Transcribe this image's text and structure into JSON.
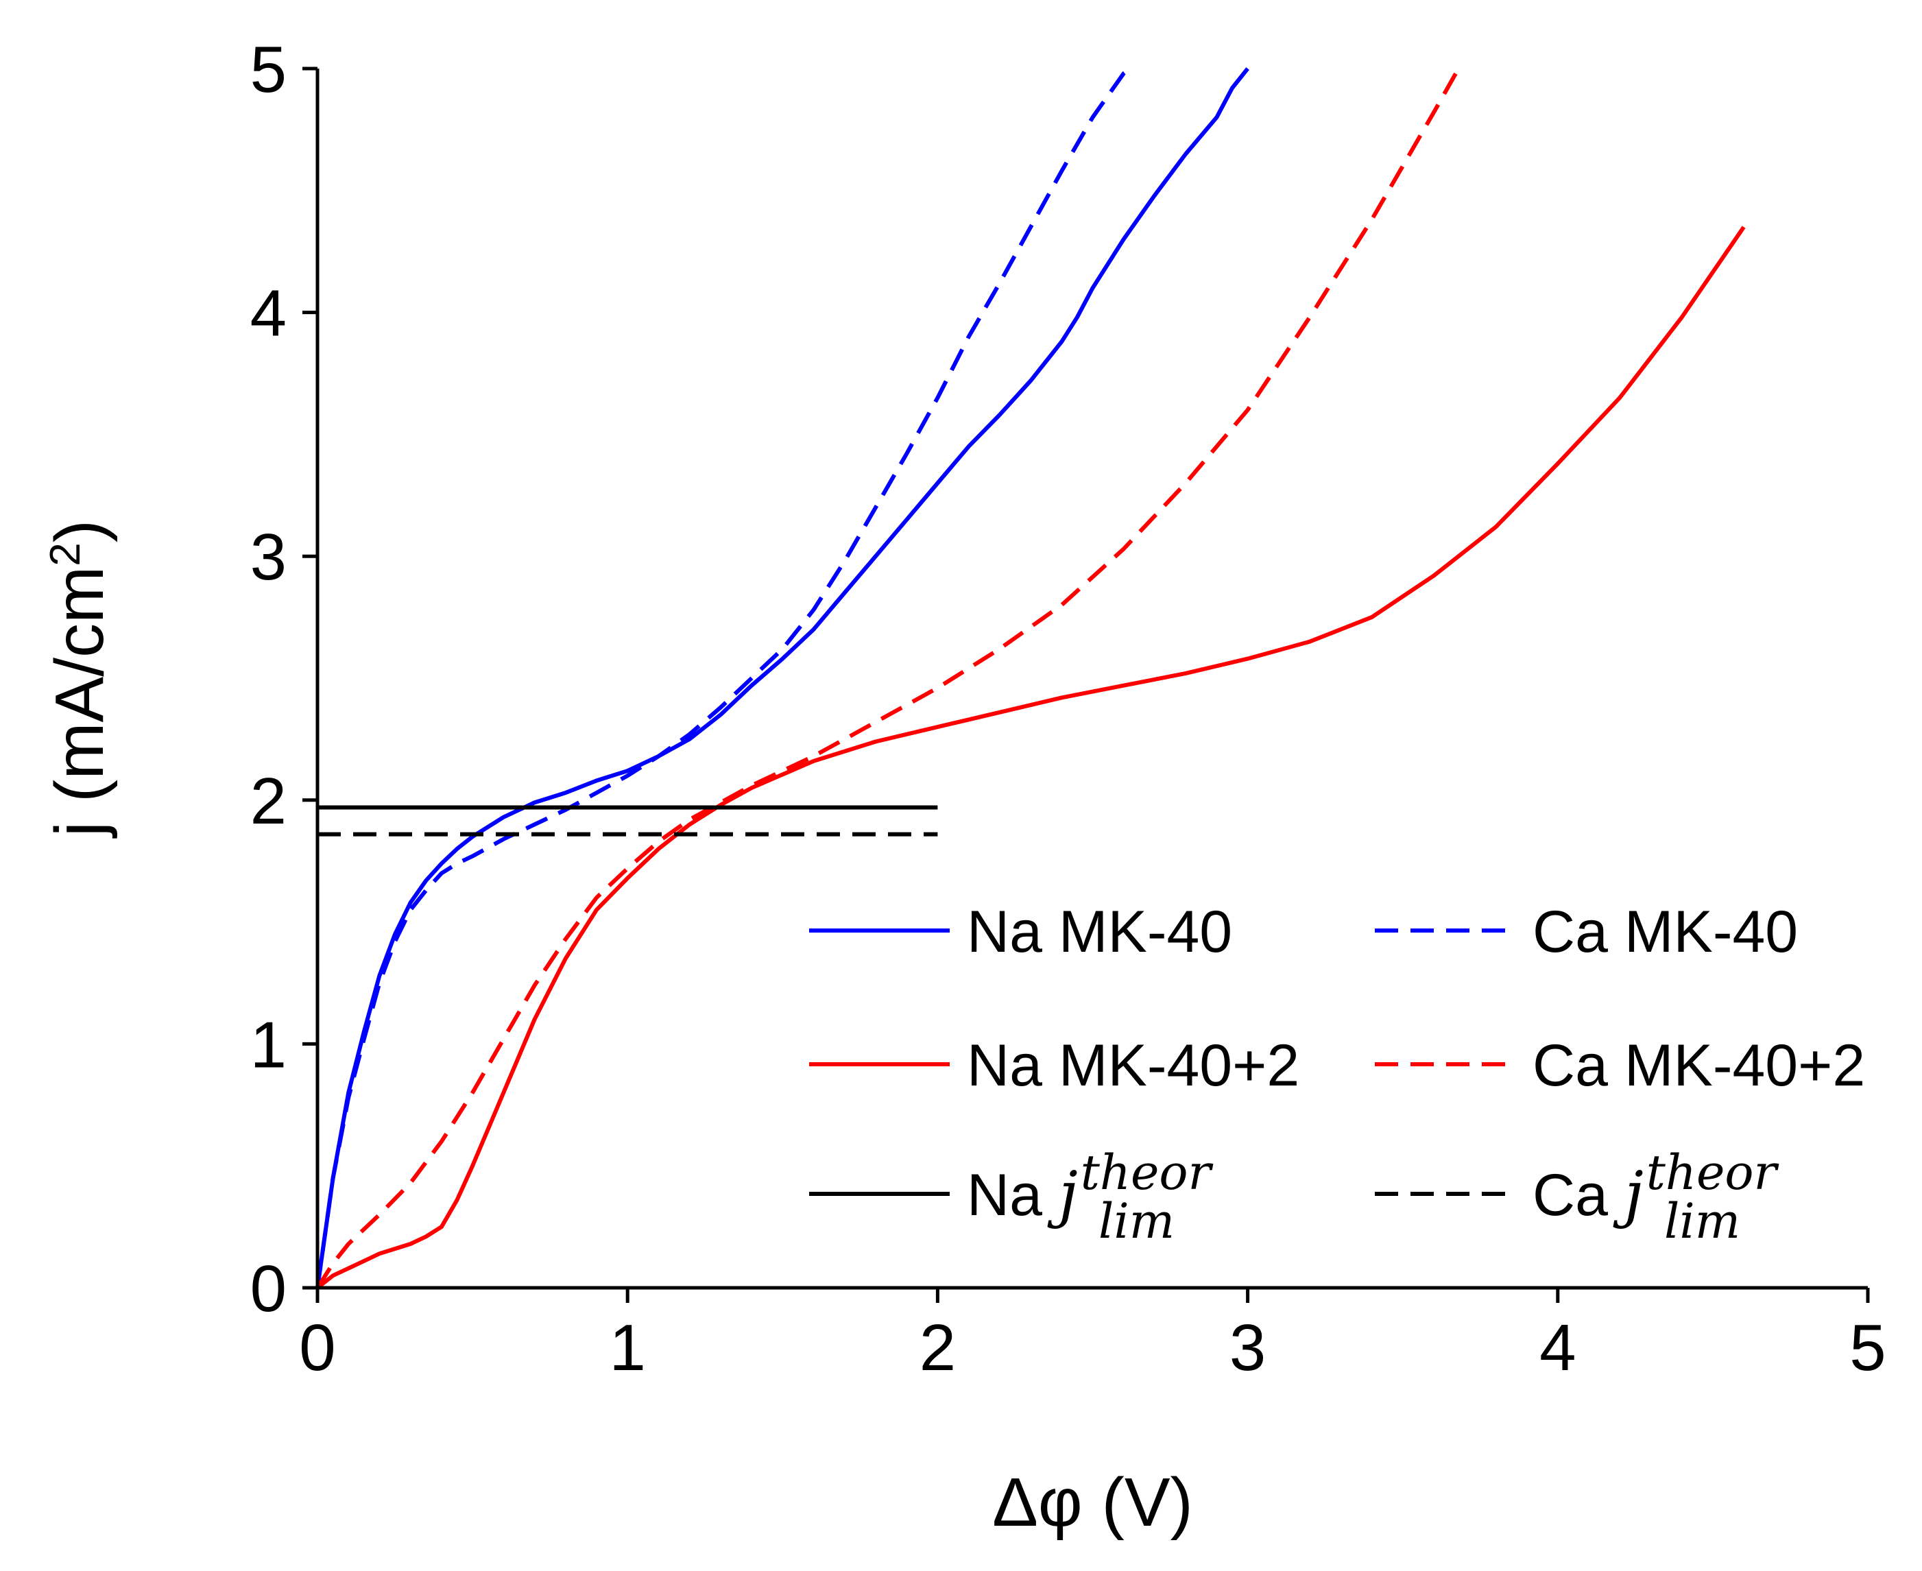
{
  "chart_data": {
    "type": "line",
    "title": "",
    "xlabel": "Δφ (V)",
    "ylabel": "j (mA/cm²)",
    "ylabel_main": "j (mA/cm",
    "ylabel_sup": "2",
    "ylabel_close": ")",
    "xlim": [
      0,
      5
    ],
    "ylim": [
      0,
      5
    ],
    "xticks": [
      0,
      1,
      2,
      3,
      4,
      5
    ],
    "yticks": [
      0,
      1,
      2,
      3,
      4,
      5
    ],
    "xtick_labels": [
      "0",
      "1",
      "2",
      "3",
      "4",
      "5"
    ],
    "ytick_labels": [
      "0",
      "1",
      "2",
      "3",
      "4",
      "5"
    ],
    "grid": false,
    "legend_position": "lower-right",
    "series": [
      {
        "name": "Na MK-40",
        "legend_label": "Na MK-40",
        "color": "#0000ff",
        "dash": "solid",
        "x": [
          0,
          0.05,
          0.1,
          0.15,
          0.2,
          0.25,
          0.3,
          0.35,
          0.4,
          0.45,
          0.5,
          0.6,
          0.7,
          0.8,
          0.9,
          1.0,
          1.1,
          1.2,
          1.3,
          1.4,
          1.5,
          1.6,
          1.7,
          1.8,
          1.9,
          2.0,
          2.1,
          2.2,
          2.3,
          2.4,
          2.45,
          2.5,
          2.6,
          2.7,
          2.8,
          2.9,
          2.95,
          3.0
        ],
        "y": [
          0,
          0.45,
          0.8,
          1.05,
          1.28,
          1.45,
          1.58,
          1.67,
          1.74,
          1.8,
          1.85,
          1.93,
          1.99,
          2.03,
          2.08,
          2.12,
          2.18,
          2.25,
          2.35,
          2.47,
          2.58,
          2.7,
          2.85,
          3.0,
          3.15,
          3.3,
          3.45,
          3.58,
          3.72,
          3.88,
          3.98,
          4.1,
          4.3,
          4.48,
          4.65,
          4.8,
          4.92,
          5.0
        ]
      },
      {
        "name": "Ca MK-40",
        "legend_label": "Ca MK-40",
        "color": "#0000ff",
        "dash": "dashed",
        "x": [
          0,
          0.05,
          0.1,
          0.15,
          0.2,
          0.25,
          0.3,
          0.35,
          0.4,
          0.45,
          0.5,
          0.6,
          0.7,
          0.8,
          0.9,
          1.0,
          1.1,
          1.2,
          1.3,
          1.4,
          1.5,
          1.6,
          1.7,
          1.8,
          1.9,
          2.0,
          2.1,
          2.2,
          2.3,
          2.4,
          2.5,
          2.6,
          2.62
        ],
        "y": [
          0,
          0.45,
          0.78,
          1.02,
          1.25,
          1.42,
          1.55,
          1.63,
          1.7,
          1.74,
          1.77,
          1.84,
          1.9,
          1.96,
          2.03,
          2.1,
          2.18,
          2.27,
          2.38,
          2.5,
          2.62,
          2.78,
          2.98,
          3.2,
          3.42,
          3.65,
          3.9,
          4.12,
          4.35,
          4.58,
          4.8,
          4.98,
          5.0
        ]
      },
      {
        "name": "Na MK-40+2",
        "legend_label": "Na MK-40+2",
        "color": "#ff0000",
        "dash": "solid",
        "x": [
          0,
          0.05,
          0.1,
          0.15,
          0.2,
          0.25,
          0.3,
          0.35,
          0.4,
          0.45,
          0.5,
          0.6,
          0.7,
          0.8,
          0.9,
          1.0,
          1.1,
          1.2,
          1.3,
          1.4,
          1.6,
          1.8,
          2.0,
          2.2,
          2.4,
          2.6,
          2.8,
          3.0,
          3.2,
          3.4,
          3.6,
          3.8,
          4.0,
          4.2,
          4.4,
          4.6
        ],
        "y": [
          0,
          0.05,
          0.08,
          0.11,
          0.14,
          0.16,
          0.18,
          0.21,
          0.25,
          0.36,
          0.5,
          0.8,
          1.1,
          1.35,
          1.55,
          1.68,
          1.8,
          1.9,
          1.98,
          2.05,
          2.16,
          2.24,
          2.3,
          2.36,
          2.42,
          2.47,
          2.52,
          2.58,
          2.65,
          2.75,
          2.92,
          3.12,
          3.38,
          3.65,
          3.98,
          4.35
        ]
      },
      {
        "name": "Ca MK-40+2",
        "legend_label": "Ca MK-40+2",
        "color": "#ff0000",
        "dash": "dashed",
        "x": [
          0,
          0.05,
          0.1,
          0.2,
          0.3,
          0.4,
          0.5,
          0.6,
          0.7,
          0.8,
          0.9,
          1.0,
          1.1,
          1.2,
          1.3,
          1.4,
          1.6,
          1.8,
          2.0,
          2.2,
          2.4,
          2.6,
          2.8,
          3.0,
          3.2,
          3.4,
          3.5,
          3.6,
          3.68
        ],
        "y": [
          0,
          0.1,
          0.18,
          0.3,
          0.43,
          0.6,
          0.8,
          1.02,
          1.24,
          1.43,
          1.6,
          1.72,
          1.83,
          1.92,
          1.99,
          2.06,
          2.18,
          2.32,
          2.46,
          2.62,
          2.8,
          3.03,
          3.3,
          3.6,
          3.98,
          4.38,
          4.6,
          4.82,
          5.0
        ]
      },
      {
        "name": "Na j_lim^theor",
        "legend_prefix": "Na ",
        "color": "#000000",
        "dash": "solid",
        "x": [
          0,
          2.0
        ],
        "y": [
          1.97,
          1.97
        ]
      },
      {
        "name": "Ca j_lim^theor",
        "legend_prefix": "Ca ",
        "color": "#000000",
        "dash": "dashed",
        "x": [
          0,
          2.0
        ],
        "y": [
          1.86,
          1.86
        ]
      }
    ],
    "legend_math": {
      "base": "j",
      "sup": "theor",
      "sub": "lim"
    }
  }
}
